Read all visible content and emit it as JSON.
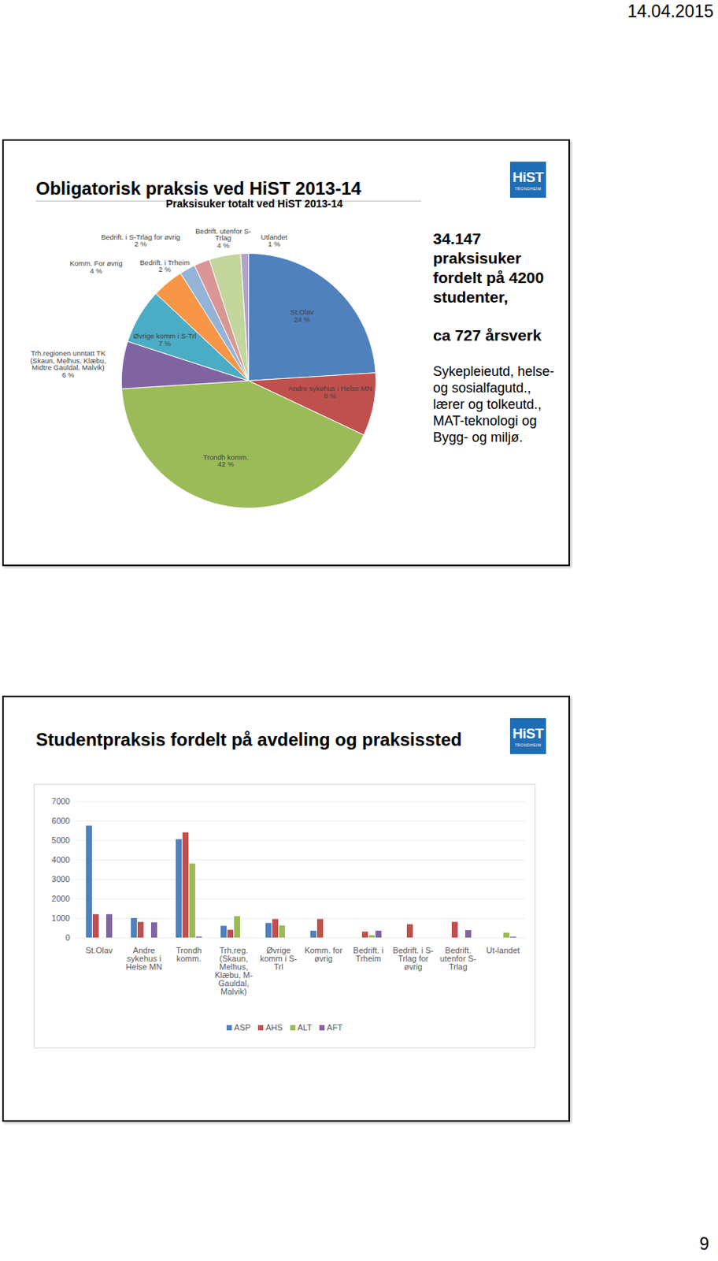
{
  "page": {
    "date": "14.04.2015",
    "page_number": 9
  },
  "logo": {
    "name": "HiST",
    "subtitle": "TRONDHEIM"
  },
  "slides": [
    {
      "title": "Obligatorisk praksis ved HiST 2013-14",
      "text": [
        "34.147 praksisuker fordelt på 4200 studenter,",
        "ca 727 årsverk",
        "Sykepleieutd, helse- og sosialfagutd., lærer og tolkeutd., MAT-teknologi og Bygg- og miljø."
      ]
    },
    {
      "title": "Studentpraksis fordelt på avdeling og praksissted"
    }
  ],
  "chart_data": [
    {
      "type": "pie",
      "title": "Praksisuker totalt ved HiST 2013-14",
      "categories": [
        "St.Olav",
        "Andre sykehus i Helse MN",
        "Trondh komm.",
        "Trh.regionen unntatt TK (Skaun, Melhus, Klæbu, Midtre Gauldal, Malvik)",
        "Øvrige komm i S-Trl",
        "Komm. For øvrig",
        "Bedrift. i Trheim",
        "Bedrift. i S-Trlag for øvrig",
        "Bedrift. utenfor S-Trlag",
        "Utlandet"
      ],
      "values": [
        24,
        8,
        42,
        6,
        7,
        4,
        2,
        2,
        4,
        1
      ],
      "value_labels": [
        "24 %",
        "8 %",
        "42 %",
        "6 %",
        "7 %",
        "4 %",
        "2 %",
        "2 %",
        "4 %",
        "1 %"
      ],
      "colors": [
        "#4f81bd",
        "#c0504d",
        "#9bbb59",
        "#8064a2",
        "#4bacc6",
        "#f79646",
        "#95b3d7",
        "#d99694",
        "#c3d69b",
        "#b3a2c7"
      ],
      "data_labels": true
    },
    {
      "type": "bar",
      "categories": [
        "St.Olav",
        "Andre sykehus i Helse MN",
        "Trondh komm.",
        "Trh.reg. (Skaun, Melhus, Klæbu, M-Gauldal, Malvik)",
        "Øvrige komm i S-Trl",
        "Komm. for øvrig",
        "Bedrift. i Trheim",
        "Bedrift. i S-Trlag for øvrig",
        "Bedrift. utenfor S-Trlag",
        "Ut-landet"
      ],
      "series": [
        {
          "name": "ASP",
          "color": "#4f81bd",
          "values": [
            5750,
            1000,
            5050,
            600,
            750,
            350,
            0,
            0,
            0,
            0
          ]
        },
        {
          "name": "AHS",
          "color": "#c0504d",
          "values": [
            1200,
            800,
            5400,
            400,
            950,
            950,
            300,
            680,
            800,
            0
          ]
        },
        {
          "name": "ALT",
          "color": "#9bbb59",
          "values": [
            0,
            0,
            3800,
            1100,
            620,
            0,
            120,
            0,
            0,
            250
          ]
        },
        {
          "name": "AFT",
          "color": "#8064a2",
          "values": [
            1200,
            780,
            50,
            0,
            0,
            0,
            350,
            0,
            380,
            40
          ]
        }
      ],
      "ylim": [
        0,
        7000
      ],
      "yticks": [
        0,
        1000,
        2000,
        3000,
        4000,
        5000,
        6000,
        7000
      ],
      "grid": true,
      "legend": "bottom"
    }
  ]
}
